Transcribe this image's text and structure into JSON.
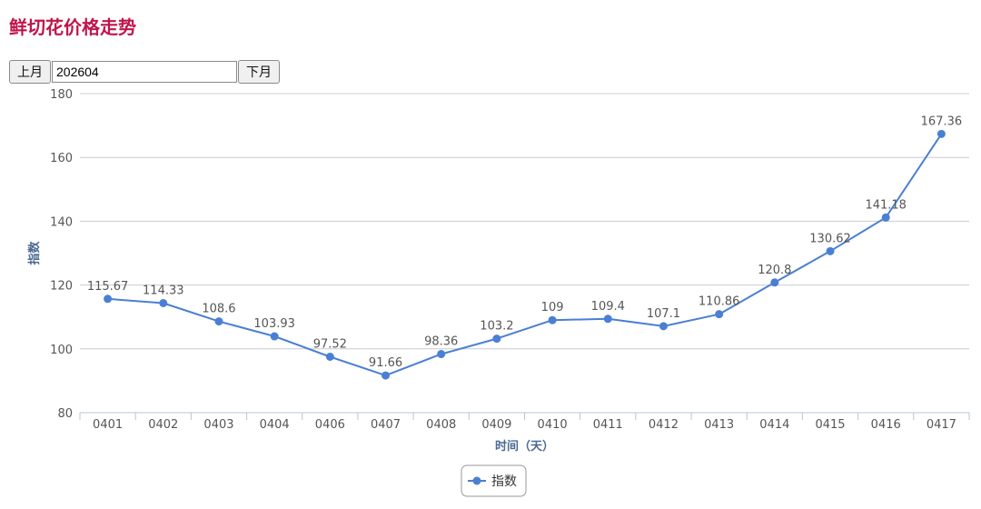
{
  "page": {
    "title": "鲜切花价格走势"
  },
  "controls": {
    "prev_label": "上月",
    "month_value": "202604",
    "next_label": "下月"
  },
  "colors": {
    "title": "#c0154b",
    "series": "#4a7fd4",
    "axis_title": "#4b6a92"
  },
  "chart_data": {
    "type": "line",
    "categories": [
      "0401",
      "0402",
      "0403",
      "0404",
      "0406",
      "0407",
      "0408",
      "0409",
      "0410",
      "0411",
      "0412",
      "0413",
      "0414",
      "0415",
      "0416",
      "0417"
    ],
    "series": [
      {
        "name": "指数",
        "values": [
          115.67,
          114.33,
          108.6,
          103.93,
          97.52,
          91.66,
          98.36,
          103.2,
          109,
          109.4,
          107.1,
          110.86,
          120.8,
          130.62,
          141.18,
          167.36
        ]
      }
    ],
    "xlabel": "时间（天）",
    "ylabel": "指数",
    "ylim": [
      80,
      180
    ],
    "yticks": [
      80,
      100,
      120,
      140,
      160,
      180
    ],
    "grid": true,
    "legend": "bottom-center",
    "data_labels": true
  }
}
